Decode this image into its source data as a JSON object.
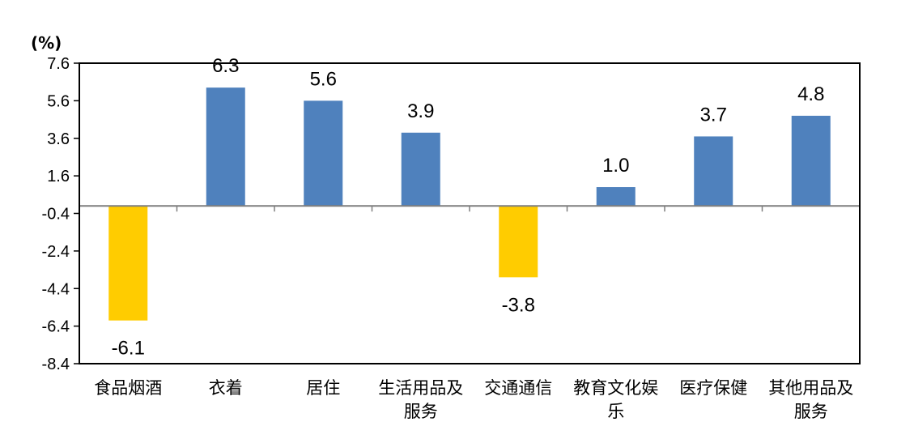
{
  "chart_data": {
    "type": "bar",
    "unit_label": "(%)",
    "categories": [
      "食品烟酒",
      "衣着",
      "居住",
      "生活用品及服务",
      "交通通信",
      "教育文化娱乐",
      "医疗保健",
      "其他用品及服务"
    ],
    "category_lines": [
      [
        "食品烟酒"
      ],
      [
        "衣着"
      ],
      [
        "居住"
      ],
      [
        "生活用品及",
        "服务"
      ],
      [
        "交通通信"
      ],
      [
        "教育文化娱",
        "乐"
      ],
      [
        "医疗保健"
      ],
      [
        "其他用品及",
        "服务"
      ]
    ],
    "values": [
      -6.1,
      6.3,
      5.6,
      3.9,
      -3.8,
      1.0,
      3.7,
      4.8
    ],
    "value_labels": [
      "-6.1",
      "6.3",
      "5.6",
      "3.9",
      "-3.8",
      "1.0",
      "3.7",
      "4.8"
    ],
    "yticks": [
      "7.6",
      "5.6",
      "3.6",
      "1.6",
      "-0.4",
      "-2.4",
      "-4.4",
      "-6.4",
      "-8.4"
    ],
    "ylim": [
      -8.4,
      7.6
    ],
    "grid": false,
    "legend": "none",
    "colors": {
      "positive": "#4F81BD",
      "negative": "#FFCC00"
    }
  }
}
